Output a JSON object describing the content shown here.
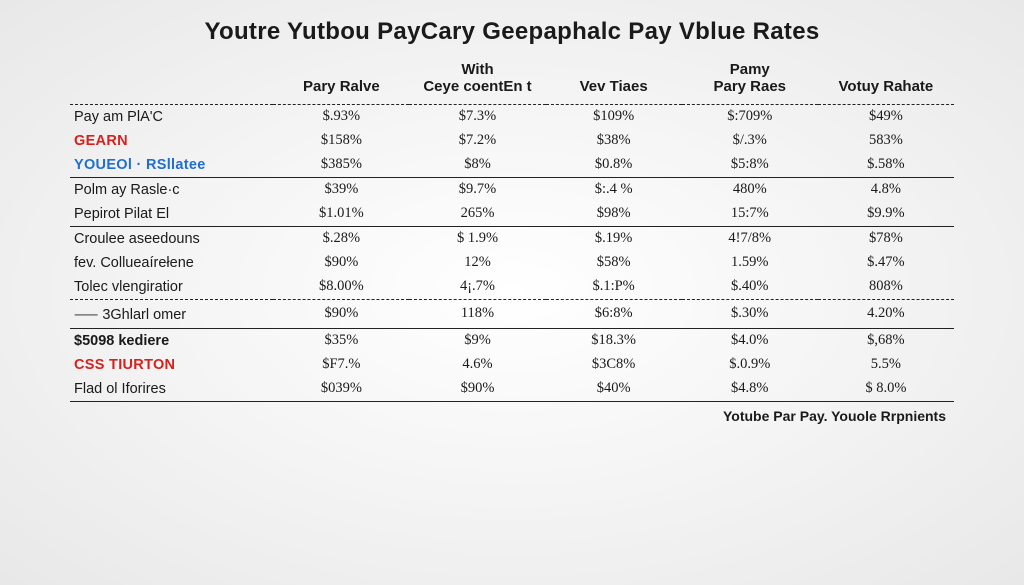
{
  "title": "Youtre Yutbou PayCary Geepaphalc Pay Vblue Rates",
  "columns": [
    "",
    "Pary Ralve",
    "With\nCeye coentEn t",
    "Vev Tiaes",
    "Pamy\nPary Raes",
    "Votuy Rahate"
  ],
  "sections": [
    {
      "class": "dash-top",
      "rows": [
        {
          "label": "Pay am PlA'C",
          "labelClass": "",
          "cells": [
            "$.93%",
            "$7.3%",
            "$109%",
            "$:709%",
            "$49%"
          ]
        },
        {
          "label": "GEARN",
          "labelClass": "red",
          "cells": [
            "$158%",
            "$7.2%",
            "$38%",
            "$/.3%",
            "583%"
          ]
        },
        {
          "label": "YOUEOl · RSllatee",
          "labelClass": "blue",
          "cells": [
            "$385%",
            "$8%",
            "$0.8%",
            "$5:8%",
            "$.58%"
          ]
        }
      ]
    },
    {
      "class": "section-top",
      "rows": [
        {
          "label": "Polm ay Rasle·c",
          "labelClass": "",
          "cells": [
            "$39%",
            "$9.7%",
            "$:.4 %",
            "480%",
            "4.8%"
          ]
        },
        {
          "label": "Pepirot Pilat El",
          "labelClass": "",
          "cells": [
            "$1.01%",
            "265%",
            "$98%",
            "15:7%",
            "$9.9%"
          ]
        }
      ]
    },
    {
      "class": "section-top",
      "rows": [
        {
          "label": "Croulee aseedouns",
          "labelClass": "",
          "cells": [
            "$.28%",
            "$ 1.9%",
            "$.19%",
            "4!7/8%",
            "$78%"
          ]
        },
        {
          "label": "fev. Collueaírełene",
          "labelClass": "",
          "cells": [
            "$90%",
            "12%",
            "$58%",
            "1.59%",
            "$.47%"
          ]
        },
        {
          "label": "Tolec vlengiratior",
          "labelClass": "",
          "cells": [
            "$8.00%",
            "4¡.7%",
            "$.1:P%",
            "$.40%",
            "808%"
          ]
        }
      ]
    },
    {
      "class": "dash-top",
      "rows": [
        {
          "label": "⸺ 3Ghlarl omer",
          "labelClass": "",
          "cells": [
            "$90%",
            "118%",
            "$6:8%",
            "$.30%",
            "4.20%"
          ]
        }
      ]
    },
    {
      "class": "thin-top bottom-line",
      "rows": [
        {
          "label": "$5098 kediere",
          "labelClass": "bold",
          "cells": [
            "$35%",
            "$9%",
            "$18.3%",
            "$4.0%",
            "$,68%"
          ]
        },
        {
          "label": "CSS TIURTON",
          "labelClass": "red",
          "cells": [
            "$F7.%",
            "4.6%",
            "$3C8%",
            "$.0.9%",
            "5.5%"
          ]
        },
        {
          "label": "Flad ol Iforires",
          "labelClass": "",
          "cells": [
            "$039%",
            "$90%",
            "$40%",
            "$4.8%",
            "$ 8.0%"
          ]
        }
      ]
    }
  ],
  "caption": "Yotube Par Pay. Youole Rrpnients",
  "colors": {
    "red": "#d8211d",
    "blue": "#1f6fd1",
    "text": "#1a1a1a",
    "rule": "#222222"
  }
}
